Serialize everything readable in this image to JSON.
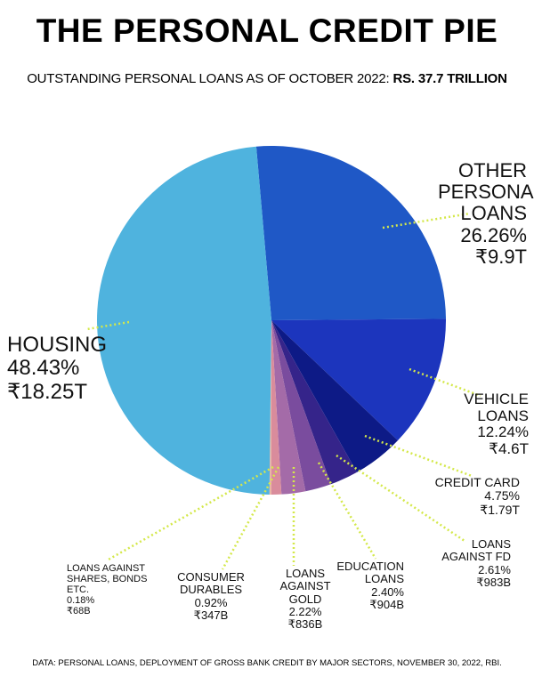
{
  "chart_data": {
    "type": "pie",
    "title": "THE PERSONAL CREDIT PIE",
    "subtitle": "OUTSTANDING PERSONAL LOANS AS OF OCTOBER 2022:",
    "subtitle_emphasis": "RS. 37.7 TRILLION",
    "categories": [
      "OTHER PERSONAL LOANS",
      "VEHICLE LOANS",
      "CREDIT CARD",
      "LOANS AGAINST FD",
      "EDUCATION LOANS",
      "LOANS AGAINST GOLD",
      "CONSUMER DURABLES",
      "LOANS AGAINST SHARES, BONDS ETC.",
      "HOUSING"
    ],
    "values": [
      26.26,
      12.24,
      4.75,
      2.61,
      2.4,
      2.22,
      0.92,
      0.18,
      48.43
    ],
    "value_labels": [
      "26.26%",
      "12.24%",
      "4.75%",
      "2.61%",
      "2.40%",
      "2.22%",
      "0.92%",
      "0.18%",
      "48.43%"
    ],
    "amounts": [
      "₹9.9T",
      "₹4.6T",
      "₹1.79T",
      "₹983B",
      "₹904B",
      "₹836B",
      "₹347B",
      "₹68B",
      "₹18.25T"
    ],
    "colors": [
      "#1f58c6",
      "#1c35bd",
      "#0d1a86",
      "#35248a",
      "#7a4c9e",
      "#a46ba8",
      "#d98c9c",
      "#eab3a3",
      "#4fb3de"
    ],
    "source": "DATA: PERSONAL LOANS, DEPLOYMENT OF GROSS BANK CREDIT BY MAJOR SECTORS, NOVEMBER 30, 2022, RBI."
  }
}
